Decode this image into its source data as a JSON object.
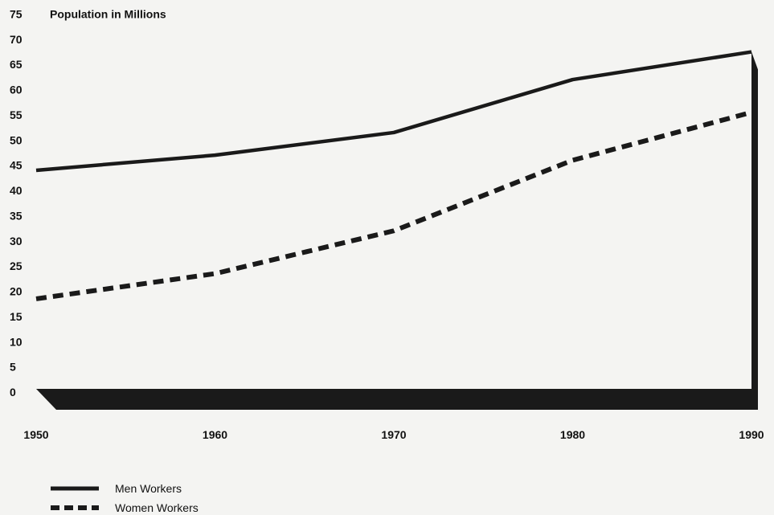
{
  "chart_data": {
    "type": "line",
    "title": "",
    "ylabel": "Population in Millions",
    "xlabel": "",
    "x": [
      1950,
      1960,
      1970,
      1980,
      1990
    ],
    "x_tick_labels": [
      "1950",
      "1960",
      "1970",
      "1980",
      "1990"
    ],
    "y_ticks": [
      0,
      5,
      10,
      15,
      20,
      25,
      30,
      35,
      40,
      45,
      50,
      55,
      60,
      65,
      70,
      75
    ],
    "ylim": [
      0,
      75
    ],
    "xlim": [
      1950,
      1990
    ],
    "grid": false,
    "legend_position": "bottom-left",
    "series": [
      {
        "name": "Men Workers",
        "style": "solid",
        "values": [
          44,
          47,
          51.5,
          62,
          67.5
        ]
      },
      {
        "name": "Women Workers",
        "style": "dashed",
        "values": [
          18.5,
          23.5,
          32,
          46,
          55.5
        ]
      }
    ],
    "colors": {
      "line": "#1a1a1a",
      "floor": "#1a1a1a",
      "background": "#f4f4f2"
    }
  }
}
